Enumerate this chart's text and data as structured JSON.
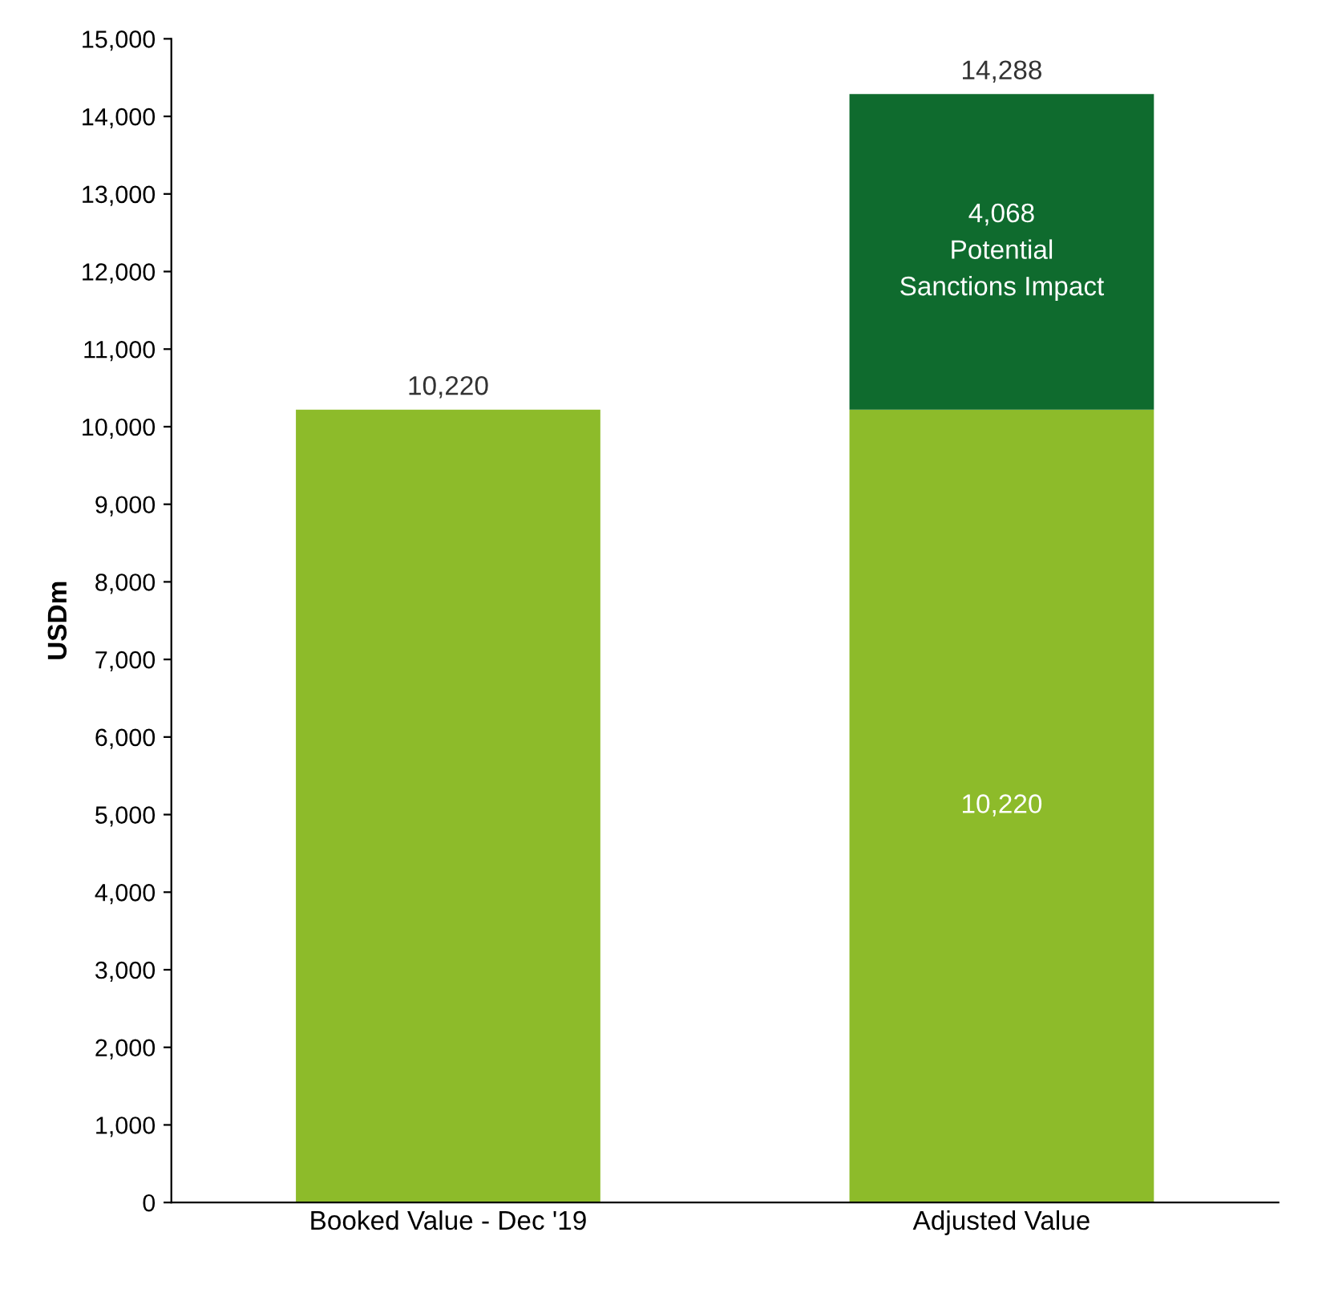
{
  "chart_data": {
    "type": "bar",
    "stacked": true,
    "ylabel": "USDm",
    "categories": [
      "Booked Value - Dec '19",
      "Adjusted Value"
    ],
    "series": [
      {
        "color": "#8dbb2a",
        "values": [
          10220,
          10220
        ],
        "value_labels": [
          null,
          "10,220"
        ]
      },
      {
        "name": "Potential Sanctions Impact",
        "color": "#0f6b2e",
        "values": [
          null,
          4068
        ],
        "value_labels": [
          null,
          "4,068"
        ]
      }
    ],
    "totals": [
      "10,220",
      "14,288"
    ],
    "ylim": [
      0,
      15000
    ],
    "yticks": [
      0,
      {
        "value": 1000,
        "label": "1,000"
      },
      {
        "value": 2000,
        "label": "2,000"
      },
      {
        "value": 3000,
        "label": "3,000"
      },
      {
        "value": 4000,
        "label": "4,000"
      },
      {
        "value": 5000,
        "label": "5,000"
      },
      {
        "value": 6000,
        "label": "6,000"
      },
      {
        "value": 7000,
        "label": "7,000"
      },
      {
        "value": 8000,
        "label": "8,000"
      },
      {
        "value": 9000,
        "label": "9,000"
      },
      {
        "value": 10000,
        "label": "10,000"
      },
      {
        "value": 11000,
        "label": "11,000"
      },
      {
        "value": 12000,
        "label": "12,000"
      },
      {
        "value": 13000,
        "label": "13,000"
      },
      {
        "value": 14000,
        "label": "14,000"
      },
      {
        "value": 15000,
        "label": "15,000"
      }
    ],
    "grid": false,
    "legend": false
  }
}
